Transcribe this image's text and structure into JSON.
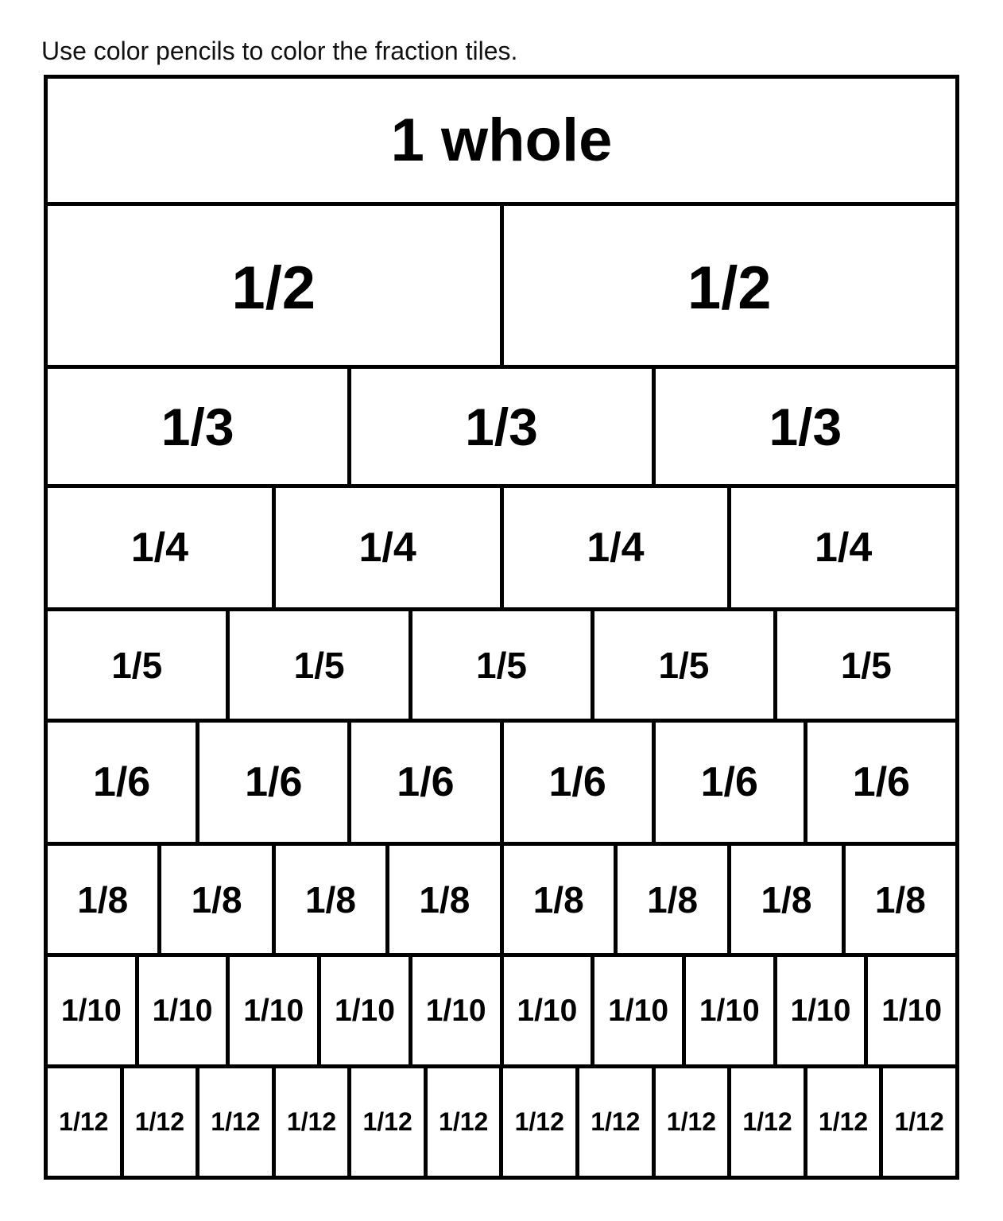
{
  "instruction": "Use color pencils to color the fraction tiles.",
  "rows": [
    {
      "label": "1 whole",
      "count": 1
    },
    {
      "label": "1/2",
      "count": 2
    },
    {
      "label": "1/3",
      "count": 3
    },
    {
      "label": "1/4",
      "count": 4
    },
    {
      "label": "1/5",
      "count": 5
    },
    {
      "label": "1/6",
      "count": 6
    },
    {
      "label": "1/8",
      "count": 8
    },
    {
      "label": "1/10",
      "count": 10
    },
    {
      "label": "1/12",
      "count": 12
    }
  ]
}
